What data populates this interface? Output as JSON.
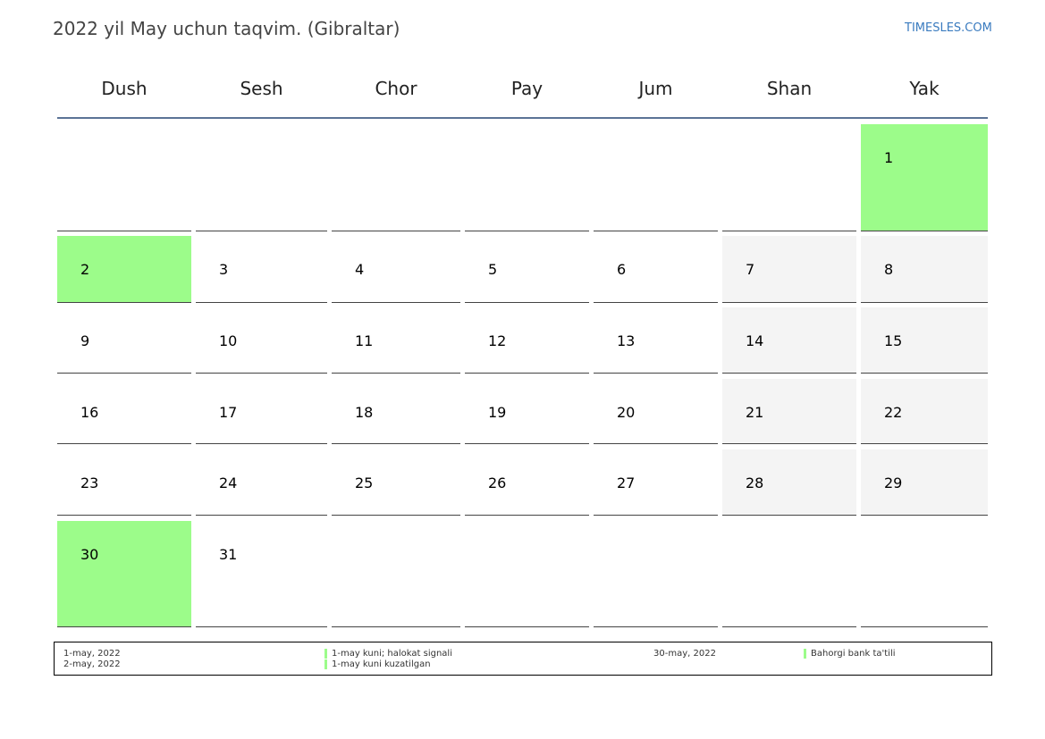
{
  "title": "2022 yil May uchun taqvim. (Gibraltar)",
  "brand": "TIMESLES.COM",
  "colors": {
    "holiday": "#9cfc8a",
    "weekend": "#f4f4f4",
    "header_rule": "#5b7396",
    "brand": "#3a7bbf"
  },
  "weekdays": [
    "Dush",
    "Sesh",
    "Chor",
    "Pay",
    "Jum",
    "Shan",
    "Yak"
  ],
  "weeks": [
    [
      "",
      "",
      "",
      "",
      "",
      "",
      "1"
    ],
    [
      "2",
      "3",
      "4",
      "5",
      "6",
      "7",
      "8"
    ],
    [
      "9",
      "10",
      "11",
      "12",
      "13",
      "14",
      "15"
    ],
    [
      "16",
      "17",
      "18",
      "19",
      "20",
      "21",
      "22"
    ],
    [
      "23",
      "24",
      "25",
      "26",
      "27",
      "28",
      "29"
    ],
    [
      "30",
      "31",
      "",
      "",
      "",
      "",
      ""
    ]
  ],
  "holidays": [
    "1",
    "2",
    "30"
  ],
  "legend": {
    "col1": [
      "1-may, 2022",
      "2-may, 2022"
    ],
    "col2": [
      "1-may kuni; halokat signali",
      "1-may kuni kuzatilgan"
    ],
    "col3": [
      "30-may, 2022"
    ],
    "col4": [
      "Bahorgi bank ta'tili"
    ]
  }
}
